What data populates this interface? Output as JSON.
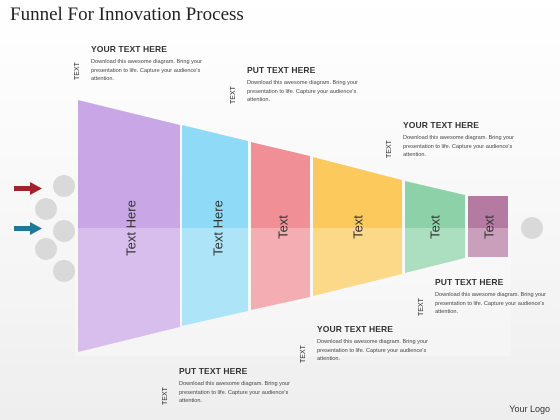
{
  "title": "Funnel For Innovation Process",
  "footer": "Your Logo",
  "segments": [
    {
      "label": "Text Here",
      "color": "#c9a6e6"
    },
    {
      "label": "Text Here",
      "color": "#8fdaf6"
    },
    {
      "label": "Text",
      "color": "#f08f96"
    },
    {
      "label": "Text",
      "color": "#fbc95c"
    },
    {
      "label": "Text",
      "color": "#8dd1a8"
    },
    {
      "label": "Text",
      "color": "#b57aa2"
    }
  ],
  "callouts": [
    {
      "heading": "YOUR TEXT HERE",
      "tag": "TEXT",
      "body": "Download this awesome diagram. Bring your presentation to life. Capture your audience's attention."
    },
    {
      "heading": "PUT TEXT HERE",
      "tag": "TEXT",
      "body": "Download this awesome diagram. Bring your presentation to life. Capture your audience's attention."
    },
    {
      "heading": "YOUR TEXT HERE",
      "tag": "TEXT",
      "body": "Download this awesome diagram. Bring your presentation to life. Capture your audience's attention."
    },
    {
      "heading": "PUT TEXT HERE",
      "tag": "TEXT",
      "body": "Download this awesome diagram. Bring your presentation to life. Capture your audience's attention."
    },
    {
      "heading": "YOUR TEXT HERE",
      "tag": "TEXT",
      "body": "Download this awesome diagram. Bring your presentation to life. Capture your audience's attention."
    },
    {
      "heading": "PUT TEXT HERE",
      "tag": "TEXT",
      "body": "Download this awesome diagram. Bring your presentation to life. Capture your audience's attention."
    }
  ],
  "colors": {
    "arrow_top": "#a3222b",
    "arrow_bottom": "#1d7a97",
    "circle": "#d9d9d9"
  }
}
